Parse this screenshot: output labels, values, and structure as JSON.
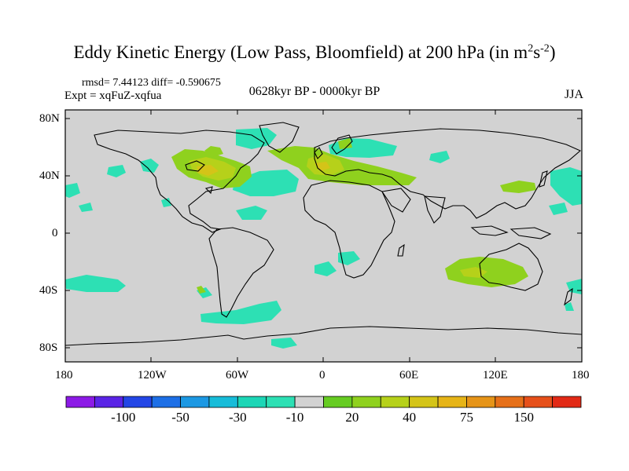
{
  "title": {
    "main": "Eddy Kinetic Energy (Low Pass, Bloomfield) at 200 hPa (in m",
    "sup1": "2",
    "mid": "s",
    "sup2": "-2",
    "close": ")"
  },
  "stats": {
    "line1": "rmsd= 7.44123 diff= -0.590675",
    "expt": "Expt = xqFuZ-xqfua"
  },
  "period": "0628kyr BP - 0000kyr BP",
  "season": "JJA",
  "lat_labels": [
    "80N",
    "40N",
    "0",
    "40S",
    "80S"
  ],
  "lon_labels": [
    "180",
    "120W",
    "60W",
    "0",
    "60E",
    "120E",
    "180"
  ],
  "colorbar": {
    "colors": [
      "#8c1ae6",
      "#5a24e6",
      "#2346e6",
      "#1d6fe6",
      "#1c98e3",
      "#17bcd9",
      "#1cd6b6",
      "#2de0b4",
      "#d2d2d2",
      "#66cc22",
      "#8fd11e",
      "#b6d11a",
      "#d4c418",
      "#e6b417",
      "#e69418",
      "#e67019",
      "#e6501a",
      "#e22a16"
    ],
    "labels": [
      "-100",
      "-50",
      "-30",
      "-10",
      "20",
      "40",
      "75",
      "150"
    ],
    "colors_meaning": "scale from strong negative (purple) to strong positive (red)"
  },
  "colors": {
    "ocean_land_bg": "#d2d2d2",
    "negative": "#2de0b4",
    "positive_low": "#66cc22",
    "positive_mid": "#b6d11a",
    "positive_high": "#d4b418"
  }
}
